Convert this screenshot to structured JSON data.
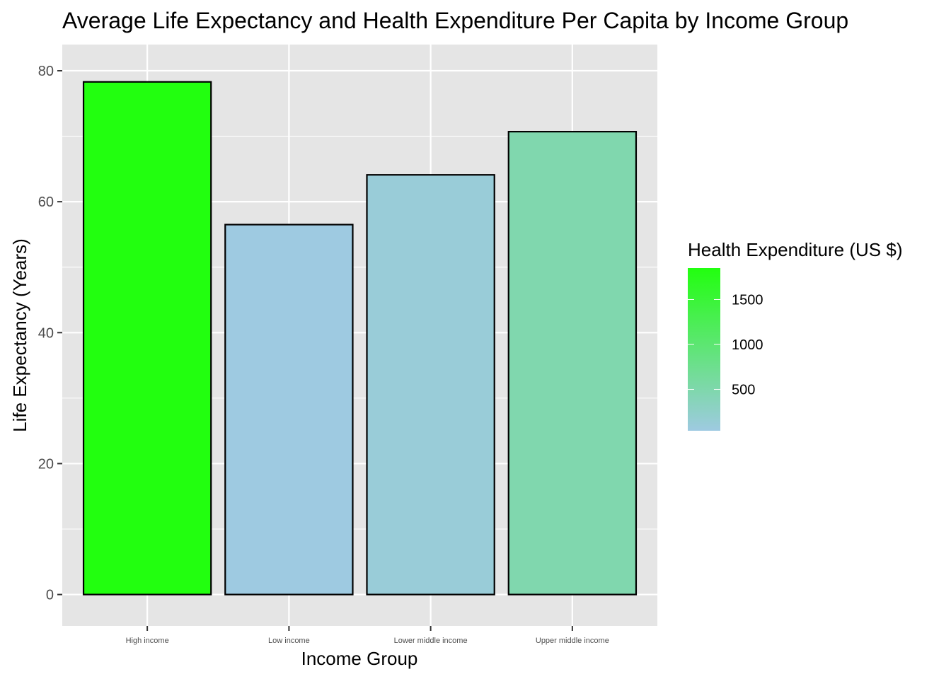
{
  "chart_data": {
    "type": "bar",
    "title": "Average Life Expectancy and Health Expenditure Per Capita by Income Group",
    "xlabel": "Income Group",
    "ylabel": "Life Expectancy (Years)",
    "categories": [
      "High income",
      "Low income",
      "Lower middle income",
      "Upper middle income"
    ],
    "values": [
      78.3,
      56.5,
      64.1,
      70.7
    ],
    "fill_values": [
      1850,
      40,
      120,
      480
    ],
    "ylim": [
      -4.8,
      84.0
    ],
    "y_ticks": [
      0,
      20,
      40,
      60,
      80
    ],
    "grid": true,
    "background_color": "#e5e5e5",
    "grid_color": "#ffffff",
    "bar_outline_color": "#000000",
    "legend": {
      "title": "Health Expenditure (US $)",
      "position": "right",
      "type": "colorbar",
      "range": [
        40,
        1850
      ],
      "breaks": [
        500,
        1000,
        1500
      ],
      "low_color": "#9ecae1",
      "high_color": "#22ff0f"
    }
  }
}
